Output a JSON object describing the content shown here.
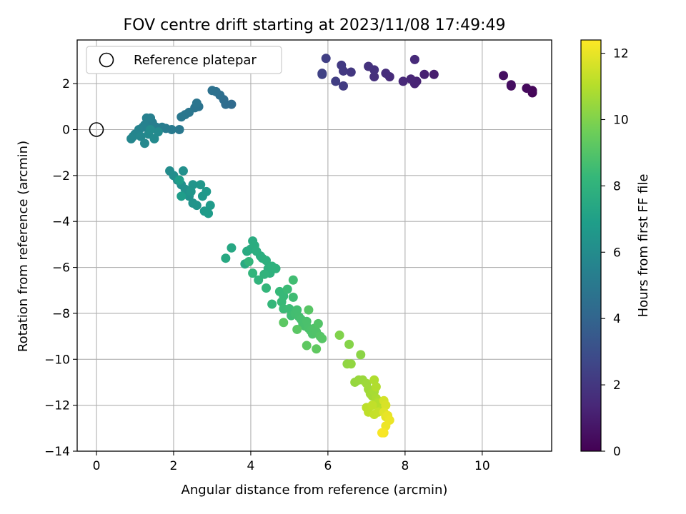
{
  "chart_data": {
    "type": "scatter",
    "title": "FOV centre drift starting at 2023/11/08 17:49:49",
    "xlabel": "Angular distance from reference (arcmin)",
    "ylabel": "Rotation from reference (arcmin)",
    "xlim": [
      -0.5,
      11.8
    ],
    "ylim": [
      -14,
      3.9
    ],
    "xticks": [
      0,
      2,
      4,
      6,
      8,
      10
    ],
    "yticks": [
      -14,
      -12,
      -10,
      -8,
      -6,
      -4,
      -2,
      0,
      2
    ],
    "grid": true,
    "legend": {
      "position": "top-left",
      "label": "Reference platepar"
    },
    "reference_point": {
      "x": 0,
      "y": 0
    },
    "colorbar": {
      "label": "Hours from first FF file",
      "range": [
        0,
        12.4
      ],
      "ticks": [
        0,
        2,
        4,
        6,
        8,
        10,
        12
      ],
      "colormap": "viridis",
      "colors": [
        "#440154",
        "#482878",
        "#3e4989",
        "#31688e",
        "#26828e",
        "#1f9e89",
        "#35b779",
        "#6ece58",
        "#b5de2b",
        "#fde725"
      ]
    },
    "series": [
      {
        "points": [
          [
            11.3,
            1.6,
            0.1
          ],
          [
            11.3,
            1.7,
            0.2
          ],
          [
            11.15,
            1.8,
            0.3
          ],
          [
            10.75,
            1.9,
            0.4
          ],
          [
            10.75,
            1.95,
            0.45
          ],
          [
            10.55,
            2.35,
            0.5
          ],
          [
            8.75,
            2.4,
            1.0
          ],
          [
            8.5,
            2.4,
            1.1
          ],
          [
            8.3,
            2.1,
            1.2
          ],
          [
            8.25,
            2.0,
            1.25
          ],
          [
            8.15,
            2.2,
            1.3
          ],
          [
            7.95,
            2.1,
            1.4
          ],
          [
            8.25,
            3.05,
            1.45
          ],
          [
            7.6,
            2.3,
            1.5
          ],
          [
            7.5,
            2.45,
            1.6
          ],
          [
            7.2,
            2.3,
            1.7
          ],
          [
            7.2,
            2.6,
            1.75
          ],
          [
            7.05,
            2.75,
            1.8
          ],
          [
            6.6,
            2.5,
            2.0
          ],
          [
            6.4,
            2.55,
            2.1
          ],
          [
            6.35,
            2.8,
            2.15
          ],
          [
            6.4,
            1.9,
            2.2
          ],
          [
            6.2,
            2.1,
            2.3
          ],
          [
            5.95,
            3.1,
            2.35
          ],
          [
            5.85,
            2.45,
            2.4
          ],
          [
            5.85,
            2.4,
            2.45
          ],
          [
            3.5,
            1.1,
            4.3
          ],
          [
            3.35,
            1.1,
            4.35
          ],
          [
            3.3,
            1.3,
            4.4
          ],
          [
            3.2,
            1.5,
            4.5
          ],
          [
            3.1,
            1.65,
            4.55
          ],
          [
            3.0,
            1.7,
            4.6
          ],
          [
            2.65,
            1.0,
            4.7
          ],
          [
            2.55,
            0.95,
            4.75
          ],
          [
            2.6,
            1.15,
            4.8
          ],
          [
            2.4,
            0.75,
            4.85
          ],
          [
            2.3,
            0.65,
            4.9
          ],
          [
            2.2,
            0.55,
            4.95
          ],
          [
            2.15,
            0.0,
            5.0
          ],
          [
            1.95,
            0.0,
            5.1
          ],
          [
            1.8,
            0.05,
            5.15
          ],
          [
            1.7,
            0.1,
            5.2
          ],
          [
            1.55,
            0.1,
            5.25
          ],
          [
            1.45,
            0.3,
            5.3
          ],
          [
            1.4,
            0.5,
            5.35
          ],
          [
            1.3,
            0.5,
            5.4
          ],
          [
            1.25,
            0.2,
            5.45
          ],
          [
            1.2,
            0.1,
            5.5
          ],
          [
            1.1,
            0.0,
            5.55
          ],
          [
            1.0,
            -0.2,
            5.6
          ],
          [
            0.95,
            -0.3,
            5.65
          ],
          [
            0.9,
            -0.4,
            5.7
          ],
          [
            1.15,
            -0.3,
            5.75
          ],
          [
            1.25,
            -0.6,
            5.8
          ],
          [
            1.35,
            -0.2,
            5.85
          ],
          [
            1.5,
            -0.4,
            5.9
          ],
          [
            1.6,
            -0.1,
            5.92
          ],
          [
            1.4,
            0.0,
            5.95
          ],
          [
            1.9,
            -1.8,
            6.0
          ],
          [
            2.0,
            -2.0,
            6.05
          ],
          [
            2.1,
            -2.2,
            6.1
          ],
          [
            2.2,
            -2.4,
            6.15
          ],
          [
            2.25,
            -1.8,
            6.2
          ],
          [
            2.3,
            -2.6,
            6.25
          ],
          [
            2.4,
            -2.9,
            6.3
          ],
          [
            2.5,
            -3.2,
            6.35
          ],
          [
            2.6,
            -3.3,
            6.4
          ],
          [
            2.5,
            -2.4,
            6.45
          ],
          [
            2.45,
            -2.7,
            6.5
          ],
          [
            2.7,
            -2.4,
            6.55
          ],
          [
            2.75,
            -2.9,
            6.6
          ],
          [
            2.85,
            -2.7,
            6.65
          ],
          [
            2.8,
            -3.55,
            6.7
          ],
          [
            2.95,
            -3.3,
            6.75
          ],
          [
            2.9,
            -3.65,
            6.8
          ],
          [
            2.2,
            -2.9,
            6.85
          ],
          [
            2.15,
            -2.2,
            6.9
          ],
          [
            3.5,
            -5.15,
            7.4
          ],
          [
            3.35,
            -5.6,
            7.45
          ],
          [
            3.85,
            -5.85,
            7.5
          ],
          [
            3.9,
            -5.3,
            7.55
          ],
          [
            4.0,
            -5.2,
            7.6
          ],
          [
            4.05,
            -4.85,
            7.62
          ],
          [
            4.1,
            -5.05,
            7.65
          ],
          [
            4.15,
            -5.3,
            7.7
          ],
          [
            4.25,
            -5.5,
            7.72
          ],
          [
            4.3,
            -5.6,
            7.75
          ],
          [
            4.4,
            -5.7,
            7.8
          ],
          [
            4.45,
            -6.05,
            7.85
          ],
          [
            4.5,
            -6.25,
            7.9
          ],
          [
            4.55,
            -5.95,
            7.92
          ],
          [
            4.65,
            -6.05,
            7.95
          ],
          [
            4.35,
            -6.3,
            8.0
          ],
          [
            4.2,
            -6.55,
            8.05
          ],
          [
            4.05,
            -6.25,
            8.1
          ],
          [
            3.95,
            -5.75,
            8.12
          ],
          [
            4.4,
            -6.9,
            8.15
          ],
          [
            4.55,
            -7.6,
            8.2
          ],
          [
            4.75,
            -7.05,
            8.3
          ],
          [
            4.85,
            -7.25,
            8.32
          ],
          [
            4.8,
            -7.5,
            8.35
          ],
          [
            4.85,
            -7.8,
            8.4
          ],
          [
            4.95,
            -6.95,
            8.42
          ],
          [
            5.0,
            -7.8,
            8.45
          ],
          [
            5.05,
            -8.1,
            8.5
          ],
          [
            5.1,
            -7.3,
            8.52
          ],
          [
            5.1,
            -6.55,
            8.55
          ],
          [
            5.15,
            -8.0,
            8.6
          ],
          [
            5.2,
            -7.85,
            8.62
          ],
          [
            5.25,
            -8.15,
            8.65
          ],
          [
            5.3,
            -8.25,
            8.7
          ],
          [
            5.35,
            -8.45,
            8.72
          ],
          [
            5.4,
            -8.55,
            8.75
          ],
          [
            5.45,
            -8.35,
            8.8
          ],
          [
            5.5,
            -8.65,
            8.82
          ],
          [
            5.55,
            -8.75,
            8.85
          ],
          [
            5.6,
            -8.9,
            8.9
          ],
          [
            5.65,
            -8.65,
            8.92
          ],
          [
            5.7,
            -8.8,
            8.95
          ],
          [
            5.75,
            -8.45,
            9.0
          ],
          [
            5.8,
            -9.0,
            9.05
          ],
          [
            5.85,
            -9.1,
            9.1
          ],
          [
            5.5,
            -7.85,
            9.12
          ],
          [
            5.2,
            -8.7,
            9.15
          ],
          [
            4.85,
            -8.4,
            9.2
          ],
          [
            5.45,
            -9.4,
            9.25
          ],
          [
            5.7,
            -9.55,
            9.3
          ],
          [
            6.3,
            -8.95,
            10.0
          ],
          [
            6.55,
            -9.35,
            10.1
          ],
          [
            6.85,
            -9.8,
            10.2
          ],
          [
            6.5,
            -10.2,
            10.3
          ],
          [
            6.6,
            -10.2,
            10.35
          ],
          [
            6.7,
            -11.0,
            10.4
          ],
          [
            6.8,
            -10.9,
            10.45
          ],
          [
            6.9,
            -10.9,
            10.5
          ],
          [
            7.0,
            -11.05,
            10.55
          ],
          [
            7.05,
            -11.3,
            10.6
          ],
          [
            7.1,
            -11.5,
            10.65
          ],
          [
            7.15,
            -11.6,
            10.7
          ],
          [
            7.2,
            -11.4,
            10.75
          ],
          [
            7.25,
            -11.7,
            10.8
          ],
          [
            7.3,
            -11.8,
            10.85
          ],
          [
            7.2,
            -10.9,
            10.9
          ],
          [
            7.25,
            -11.2,
            10.95
          ],
          [
            7.3,
            -11.9,
            11.0
          ],
          [
            7.35,
            -12.1,
            11.05
          ],
          [
            7.4,
            -12.2,
            11.1
          ],
          [
            7.0,
            -12.1,
            11.15
          ],
          [
            7.05,
            -12.3,
            11.2
          ],
          [
            7.15,
            -12.0,
            11.25
          ],
          [
            7.2,
            -12.4,
            11.3
          ],
          [
            7.3,
            -12.3,
            11.35
          ],
          [
            7.45,
            -11.8,
            11.6
          ],
          [
            7.5,
            -12.0,
            11.7
          ],
          [
            7.45,
            -12.3,
            11.8
          ],
          [
            7.5,
            -12.5,
            11.9
          ],
          [
            7.55,
            -12.45,
            12.0
          ],
          [
            7.6,
            -12.65,
            12.05
          ],
          [
            7.5,
            -12.9,
            12.1
          ],
          [
            7.45,
            -13.2,
            12.2
          ],
          [
            7.4,
            -13.2,
            12.3
          ]
        ]
      }
    ]
  }
}
